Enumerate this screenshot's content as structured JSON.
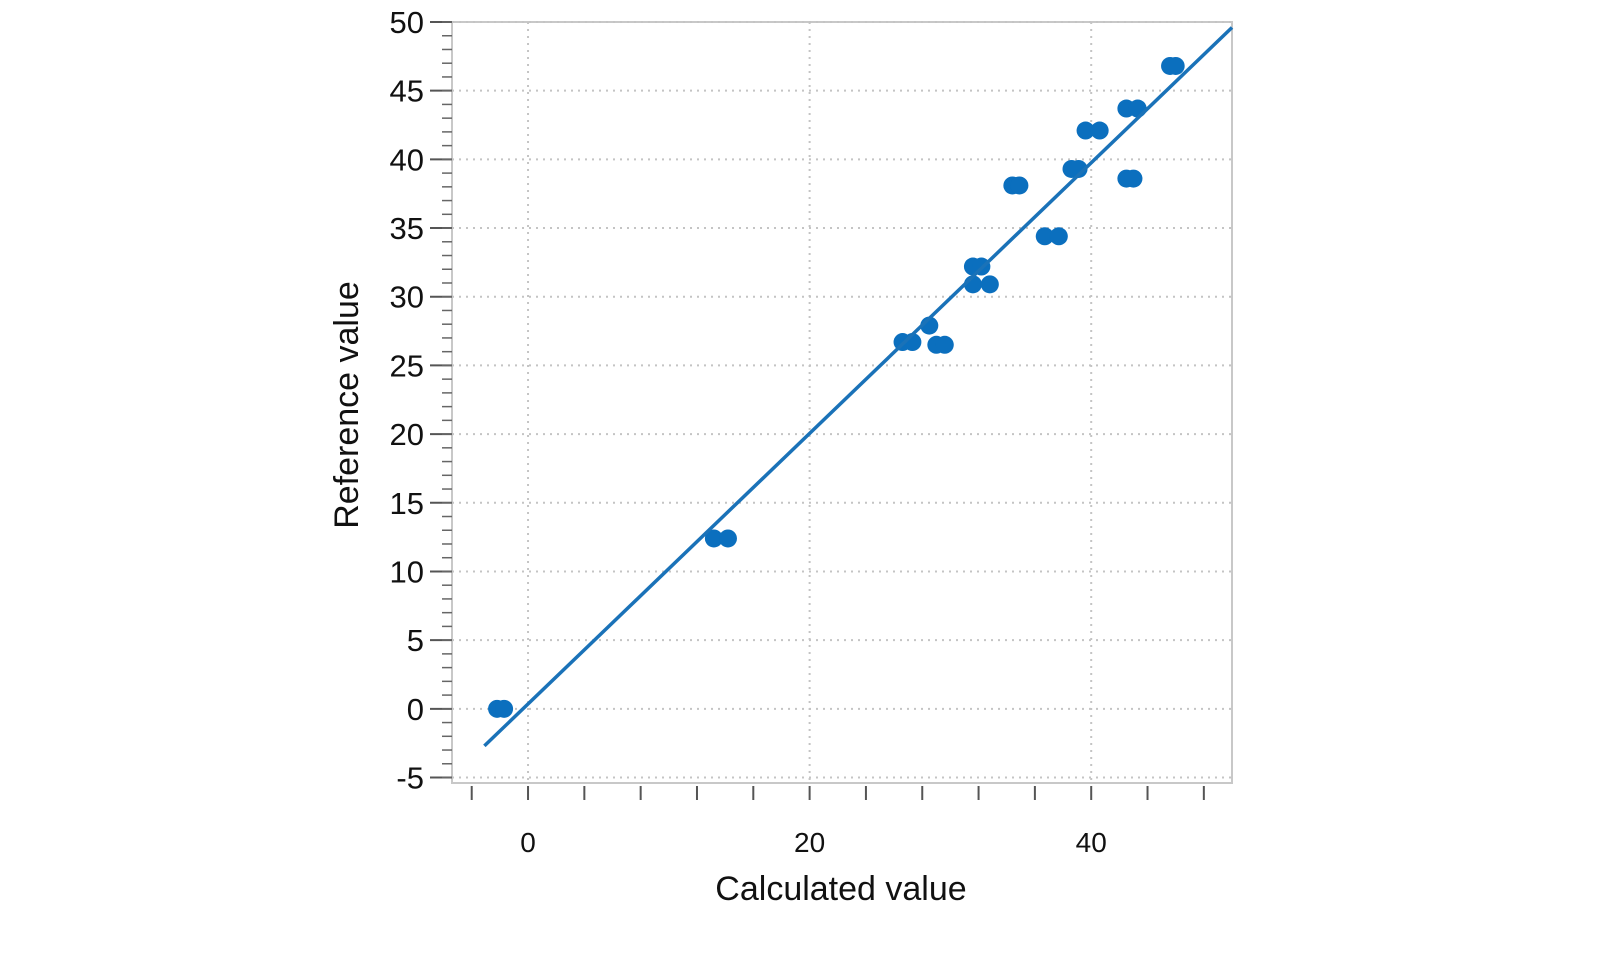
{
  "chart_data": {
    "type": "scatter",
    "xlabel": "Calculated value",
    "ylabel": "Reference value",
    "xlim": [
      -5.4,
      50
    ],
    "ylim": [
      -5.4,
      50
    ],
    "xticks": [
      0,
      20,
      40
    ],
    "xminorticks": [
      -4,
      0,
      4,
      8,
      12,
      16,
      20,
      24,
      28,
      32,
      36,
      40,
      44,
      48
    ],
    "yticks": [
      -5,
      0,
      5,
      10,
      15,
      20,
      25,
      30,
      35,
      40,
      45,
      50
    ],
    "yminorticks": [
      -5,
      -4,
      -3,
      -2,
      -1,
      0,
      1,
      2,
      3,
      4,
      5,
      6,
      7,
      8,
      9,
      10,
      11,
      12,
      13,
      14,
      15,
      16,
      17,
      18,
      19,
      20,
      21,
      22,
      23,
      24,
      25,
      26,
      27,
      28,
      29,
      30,
      31,
      32,
      33,
      34,
      35,
      36,
      37,
      38,
      39,
      40,
      41,
      42,
      43,
      44,
      45,
      46,
      47,
      48,
      49,
      50
    ],
    "grid": true,
    "series": [
      {
        "type": "scatter",
        "color": "#0b6fbe",
        "x": [
          -2.2,
          -1.7,
          13.2,
          14.2,
          26.6,
          27.3,
          28.5,
          29.0,
          29.6,
          31.6,
          32.2,
          31.6,
          32.8,
          34.4,
          34.9,
          36.7,
          37.7,
          38.6,
          39.1,
          39.6,
          40.6,
          42.5,
          43.3,
          42.5,
          43.0,
          45.6,
          46.0
        ],
        "values": [
          0,
          0,
          12.4,
          12.4,
          26.7,
          26.7,
          27.9,
          26.5,
          26.5,
          32.2,
          32.2,
          30.9,
          30.9,
          38.1,
          38.1,
          34.4,
          34.4,
          39.3,
          39.3,
          42.1,
          42.1,
          43.7,
          43.7,
          38.6,
          38.6,
          46.8,
          46.8
        ]
      },
      {
        "type": "line",
        "color": "#1a72b8",
        "x": [
          -3.1,
          50
        ],
        "values": [
          -2.7,
          49.6
        ]
      }
    ]
  }
}
